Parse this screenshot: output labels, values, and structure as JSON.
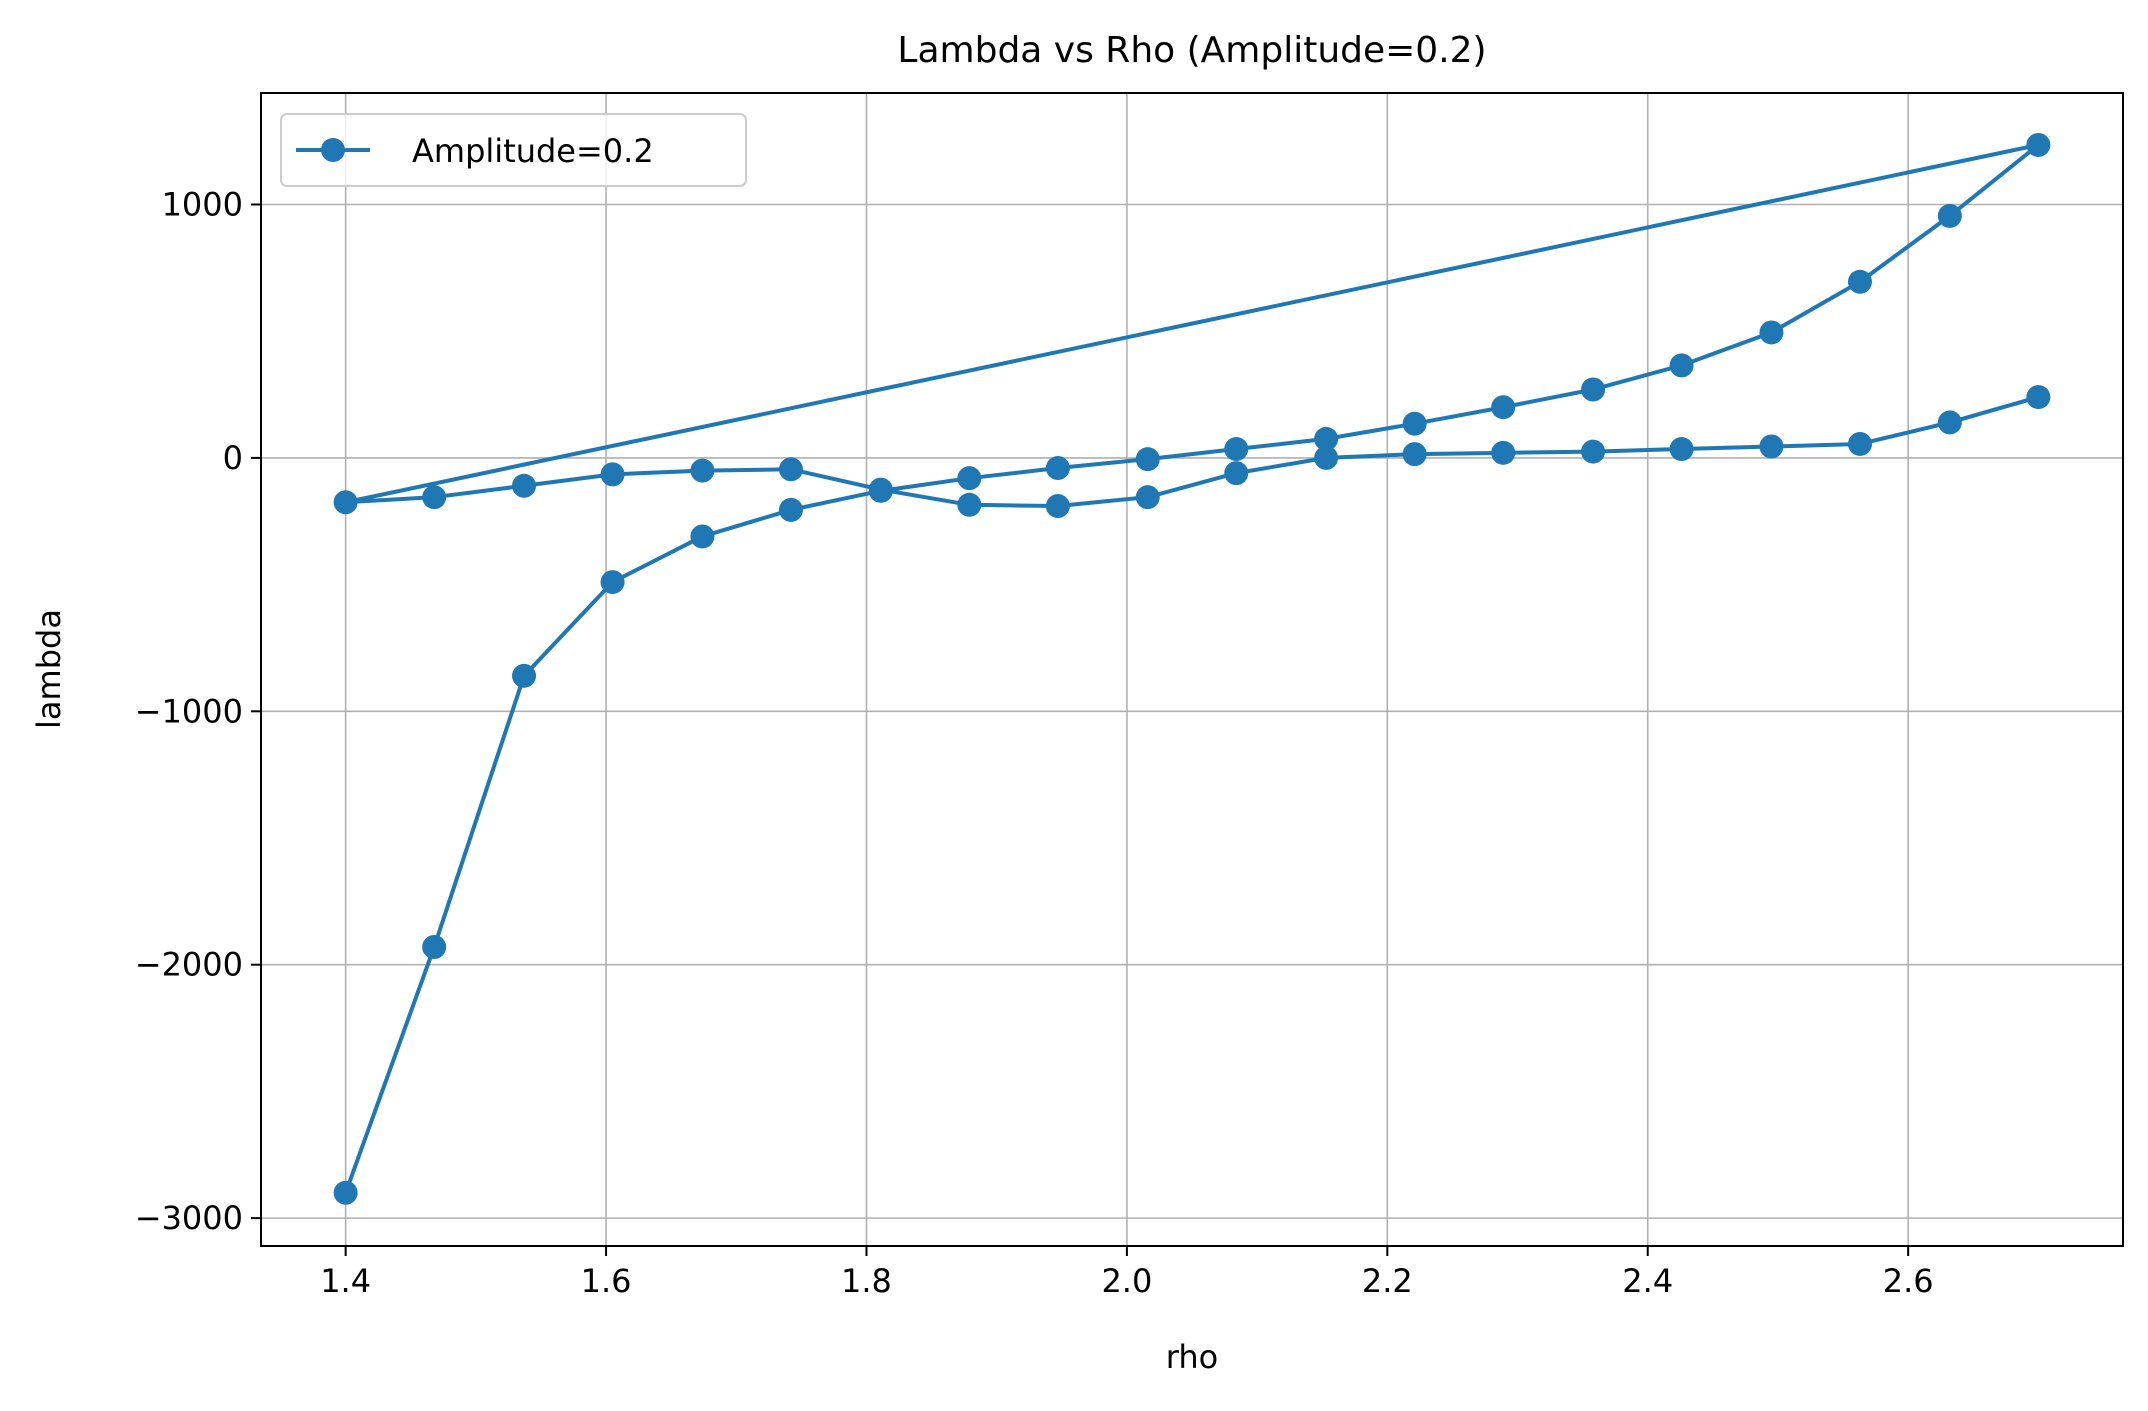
{
  "chart_data": {
    "type": "line",
    "title": "Lambda vs Rho (Amplitude=0.2)",
    "xlabel": "rho",
    "ylabel": "lambda",
    "xlim": [
      1.335,
      2.765
    ],
    "ylim": [
      -3110,
      1440
    ],
    "xticks": [
      1.4,
      1.6,
      1.8,
      2.0,
      2.2,
      2.4,
      2.6
    ],
    "xtick_labels": [
      "1.4",
      "1.6",
      "1.8",
      "2.0",
      "2.2",
      "2.4",
      "2.6"
    ],
    "yticks": [
      -3000,
      -2000,
      -1000,
      0,
      1000
    ],
    "ytick_labels": [
      "−3000",
      "−2000",
      "−1000",
      "0",
      "1000"
    ],
    "grid": true,
    "legend_position": "top-left",
    "series": [
      {
        "name": "Amplitude=0.2",
        "color": "#1f77b4",
        "marker": "circle",
        "points": [
          [
            1.4,
            -2900
          ],
          [
            1.468,
            -1930
          ],
          [
            1.537,
            -860
          ],
          [
            1.605,
            -490
          ],
          [
            1.674,
            -310
          ],
          [
            1.742,
            -205
          ],
          [
            1.811,
            -130
          ],
          [
            1.879,
            -80
          ],
          [
            1.947,
            -40
          ],
          [
            2.016,
            -5
          ],
          [
            2.084,
            35
          ],
          [
            2.153,
            75
          ],
          [
            2.221,
            135
          ],
          [
            2.289,
            200
          ],
          [
            2.358,
            270
          ],
          [
            2.426,
            365
          ],
          [
            2.495,
            495
          ],
          [
            2.563,
            695
          ],
          [
            2.632,
            955
          ],
          [
            2.7,
            1235
          ],
          [
            1.4,
            -175
          ],
          [
            1.468,
            -155
          ],
          [
            1.537,
            -110
          ],
          [
            1.605,
            -65
          ],
          [
            1.674,
            -50
          ],
          [
            1.742,
            -45
          ],
          [
            1.811,
            -125
          ],
          [
            1.879,
            -185
          ],
          [
            1.947,
            -190
          ],
          [
            2.016,
            -155
          ],
          [
            2.084,
            -60
          ],
          [
            2.153,
            0
          ],
          [
            2.221,
            15
          ],
          [
            2.289,
            20
          ],
          [
            2.358,
            25
          ],
          [
            2.426,
            35
          ],
          [
            2.495,
            45
          ],
          [
            2.563,
            55
          ],
          [
            2.632,
            140
          ],
          [
            2.7,
            240
          ]
        ]
      }
    ]
  }
}
